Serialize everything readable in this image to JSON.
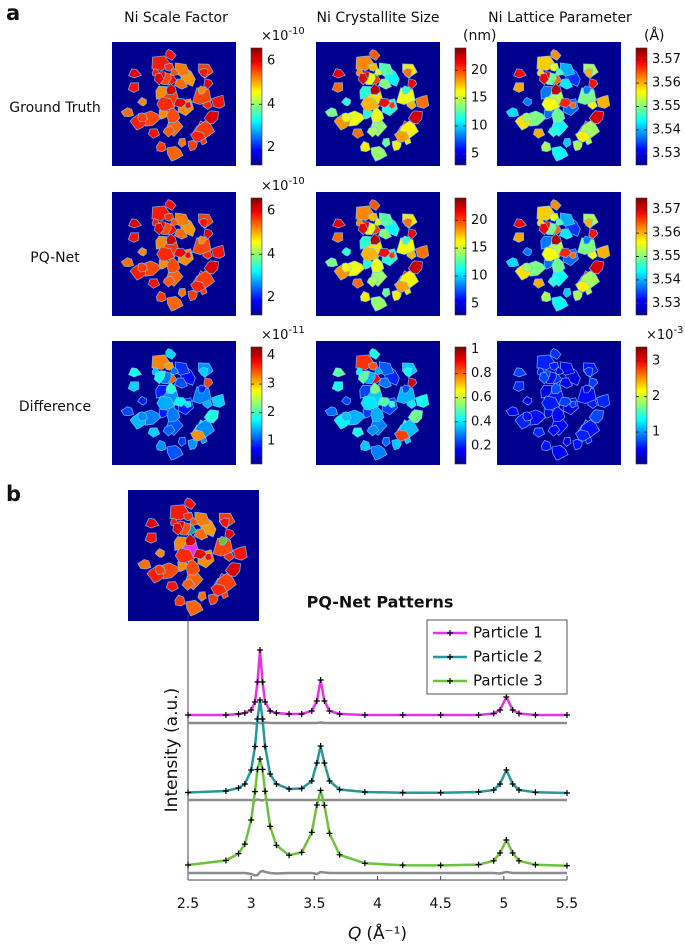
{
  "panel_labels": [
    "a",
    "b"
  ],
  "column_titles": [
    "Ni Scale Factor",
    "Ni Crystallite Size",
    "Ni Lattice Parameter"
  ],
  "row_labels": [
    "Ground Truth",
    "PQ-Net",
    "Difference"
  ],
  "colorbars": [
    [
      {
        "exponent": {
          "base": "×10",
          "power": "-10"
        },
        "clim": [
          1.2,
          6.6
        ],
        "ticks": [
          2,
          4,
          6
        ]
      },
      {
        "unit": "(nm)",
        "clim": [
          3,
          24
        ],
        "ticks": [
          5,
          10,
          15,
          20
        ]
      },
      {
        "unit": "(Å)",
        "clim": [
          3.525,
          3.575
        ],
        "ticks": [
          3.53,
          3.54,
          3.55,
          3.56,
          3.57
        ]
      }
    ],
    [
      {
        "exponent": {
          "base": "×10",
          "power": "-10"
        },
        "clim": [
          1.2,
          6.6
        ],
        "ticks": [
          2,
          4,
          6
        ]
      },
      {
        "clim": [
          3,
          24
        ],
        "ticks": [
          5,
          10,
          15,
          20
        ]
      },
      {
        "clim": [
          3.525,
          3.575
        ],
        "ticks": [
          3.53,
          3.54,
          3.55,
          3.56,
          3.57
        ]
      }
    ],
    [
      {
        "exponent": {
          "base": "×10",
          "power": "-11"
        },
        "clim": [
          0.2,
          4.3
        ],
        "ticks": [
          1,
          2,
          3,
          4
        ]
      },
      {
        "clim": [
          0.05,
          1.02
        ],
        "ticks": [
          0.2,
          0.4,
          0.6,
          0.8,
          1
        ]
      },
      {
        "exponent": {
          "base": "×10",
          "power": "-3"
        },
        "clim": [
          0.1,
          3.4
        ],
        "ticks": [
          1,
          2,
          3
        ]
      }
    ]
  ],
  "chart_data": {
    "type": "line",
    "title": "PQ-Net Patterns",
    "xlabel": {
      "symbol": "Q",
      "unit": "(Å⁻¹)"
    },
    "ylabel": "Intensity (a.u.)",
    "xlim": [
      2.5,
      5.5
    ],
    "xticks": [
      2.5,
      3,
      3.5,
      4,
      4.5,
      5,
      5.5
    ],
    "ylim": [
      0,
      265
    ],
    "legend": "northeast",
    "residual_color": "#8c8c8c",
    "x": [
      2.5,
      2.8,
      2.9,
      2.95,
      3.0,
      3.03,
      3.05,
      3.07,
      3.09,
      3.11,
      3.15,
      3.2,
      3.3,
      3.4,
      3.48,
      3.52,
      3.55,
      3.58,
      3.62,
      3.7,
      3.9,
      4.2,
      4.5,
      4.8,
      4.92,
      4.97,
      5.02,
      5.07,
      5.12,
      5.25,
      5.5
    ],
    "series": [
      {
        "name": "Particle 1",
        "color": "#e632e6",
        "values": [
          165,
          165,
          166,
          167,
          170,
          178,
          198,
          230,
          198,
          178,
          169,
          167,
          166,
          166,
          169,
          179,
          200,
          179,
          169,
          166,
          165,
          165,
          165,
          165,
          166.5,
          170,
          183,
          170,
          166.5,
          165,
          165
        ],
        "residual": [
          157,
          157,
          157,
          157,
          157,
          156.5,
          157.5,
          157,
          156.5,
          157.5,
          157,
          157,
          157,
          157,
          157,
          157,
          157.5,
          157,
          157,
          157,
          157,
          157,
          157,
          157,
          157,
          157,
          157,
          157,
          157,
          157,
          157
        ]
      },
      {
        "name": "Particle 2",
        "color": "#23999b",
        "values": [
          87.5,
          89,
          92,
          96,
          110,
          133.5,
          161,
          180,
          161,
          133.5,
          106,
          96,
          91,
          91.5,
          99,
          117,
          134,
          117,
          99,
          90.5,
          88,
          87.3,
          87.3,
          88,
          90,
          96,
          110,
          96,
          90,
          87.7,
          87
        ],
        "residual": [
          80,
          80,
          80,
          80,
          80,
          79.5,
          80.5,
          80,
          79.5,
          80.5,
          80,
          80,
          80,
          80,
          80,
          80,
          80,
          80,
          80,
          80,
          80,
          80,
          80,
          80,
          80,
          80,
          80,
          80,
          80,
          80,
          80
        ]
      },
      {
        "name": "Particle 3",
        "color": "#6cc23c",
        "values": [
          15,
          19.5,
          26.4,
          35.9,
          60,
          88.4,
          110.5,
          121,
          110.6,
          88.7,
          53.6,
          34.7,
          24.8,
          27.6,
          47.6,
          75,
          89.6,
          74.7,
          46.6,
          25.2,
          16.7,
          14.8,
          14.6,
          15.4,
          19.2,
          27,
          40,
          27,
          19.2,
          15.2,
          14.3
        ],
        "residual": [
          7,
          7,
          7,
          7,
          6,
          4.5,
          5,
          8,
          9,
          8,
          7,
          6.5,
          7,
          7,
          7,
          6,
          8,
          7.5,
          7,
          7,
          7,
          7,
          7,
          7,
          7,
          6.5,
          8,
          7,
          7,
          7,
          7
        ]
      }
    ]
  }
}
